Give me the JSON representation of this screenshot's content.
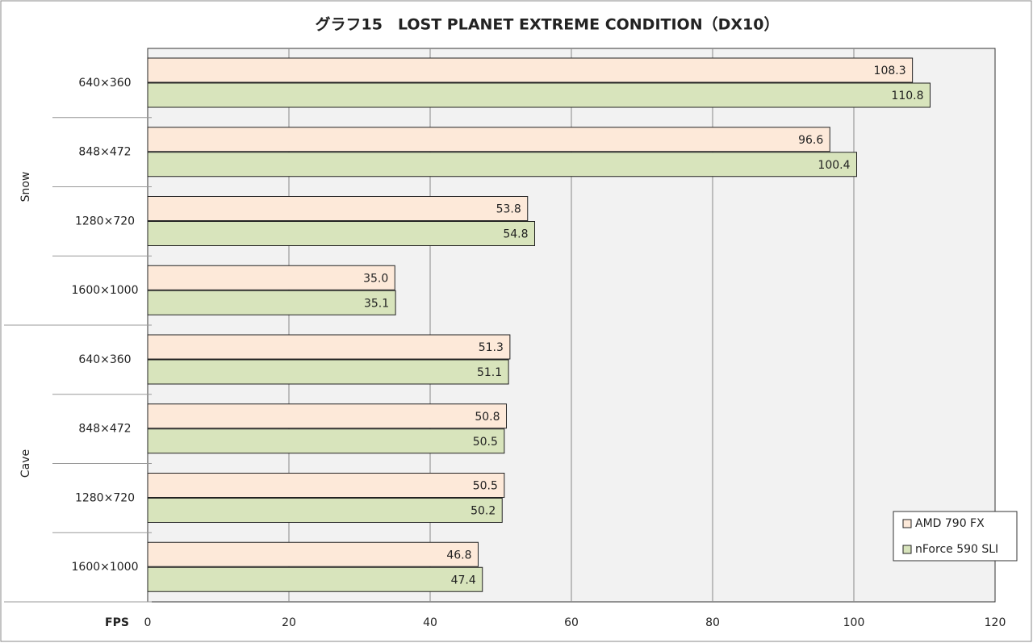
{
  "chart_data": {
    "type": "bar",
    "orientation": "horizontal",
    "title": "グラフ15　LOST PLANET EXTREME CONDITION（DX10）",
    "x_label": "FPS",
    "groups": [
      {
        "label": "Snow",
        "categories": [
          "640×360",
          "848×472",
          "1280×720",
          "1600×1000"
        ]
      },
      {
        "label": "Cave",
        "categories": [
          "640×360",
          "848×472",
          "1280×720",
          "1600×1000"
        ]
      }
    ],
    "series": [
      {
        "name": "AMD 790  FX",
        "color": "#fde9d9",
        "values": [
          108.3,
          96.6,
          53.8,
          35.0,
          51.3,
          50.8,
          50.5,
          46.8
        ],
        "value_labels": [
          "108.3",
          "96.6",
          "53.8",
          "35.0",
          "51.3",
          "50.8",
          "50.5",
          "46.8"
        ]
      },
      {
        "name": "nForce 590  SLI",
        "color": "#d8e4bc",
        "values": [
          110.8,
          100.4,
          54.8,
          35.1,
          51.1,
          50.5,
          50.2,
          47.4
        ],
        "value_labels": [
          "110.8",
          "100.4",
          "54.8",
          "35.1",
          "51.1",
          "50.5",
          "50.2",
          "47.4"
        ]
      }
    ],
    "xlim": [
      0,
      120
    ],
    "xticks": [
      0,
      20,
      40,
      60,
      80,
      100,
      120
    ],
    "grid": true,
    "legend": "lower right"
  }
}
